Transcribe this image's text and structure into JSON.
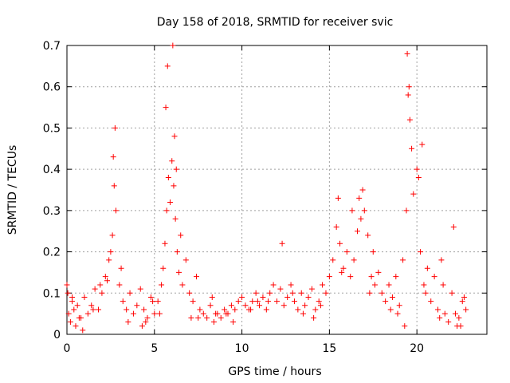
{
  "chart_data": {
    "type": "scatter",
    "title": "Day 158 of 2018, SRMTID for receiver svic",
    "xlabel": "GPS time / hours",
    "ylabel": "SRMTID / TECUs",
    "xlim": [
      0,
      24
    ],
    "ylim": [
      0,
      0.7
    ],
    "xticks": [
      0,
      5,
      10,
      15,
      20
    ],
    "xtick_labels": [
      "0",
      "5",
      "10",
      "15",
      "20"
    ],
    "yticks": [
      0,
      0.1,
      0.2,
      0.3,
      0.4,
      0.5,
      0.6,
      0.7
    ],
    "ytick_labels": [
      "0",
      "0.1",
      "0.2",
      "0.3",
      "0.4",
      "0.5",
      "0.6",
      "0.7"
    ],
    "grid": true,
    "marker": "+",
    "marker_color": "#ff0000",
    "series": [
      {
        "name": "SRMTID",
        "x": [
          0.0,
          0.1,
          0.2,
          0.3,
          0.4,
          0.5,
          0.6,
          0.8,
          1.0,
          1.2,
          1.4,
          1.6,
          1.8,
          2.0,
          2.2,
          2.4,
          2.5,
          2.6,
          2.7,
          2.8,
          3.0,
          3.2,
          3.4,
          3.6,
          3.8,
          4.0,
          4.2,
          4.4,
          4.6,
          4.8,
          5.0,
          5.2,
          5.4,
          5.5,
          5.6,
          5.7,
          5.8,
          5.9,
          6.0,
          6.1,
          6.2,
          6.3,
          6.4,
          6.6,
          6.8,
          7.0,
          7.2,
          7.4,
          7.6,
          7.8,
          8.0,
          8.2,
          8.4,
          8.6,
          8.8,
          9.0,
          9.2,
          9.4,
          9.6,
          9.8,
          10.0,
          10.2,
          10.4,
          10.6,
          10.8,
          11.0,
          11.2,
          11.4,
          11.6,
          11.8,
          12.0,
          12.2,
          12.4,
          12.6,
          12.8,
          13.0,
          13.2,
          13.4,
          13.6,
          13.8,
          14.0,
          14.2,
          14.4,
          14.6,
          14.8,
          15.0,
          15.2,
          15.4,
          15.6,
          15.8,
          16.0,
          16.2,
          16.4,
          16.6,
          16.8,
          17.0,
          17.2,
          17.4,
          17.6,
          17.8,
          18.0,
          18.2,
          18.4,
          18.6,
          18.8,
          19.0,
          19.2,
          19.4,
          19.5,
          19.6,
          19.8,
          20.0,
          20.2,
          20.4,
          20.6,
          20.8,
          21.0,
          21.2,
          21.4,
          21.6,
          21.8,
          22.0,
          22.2,
          22.4,
          22.6,
          22.8,
          0.05,
          0.3,
          0.7,
          1.5,
          2.3,
          2.65,
          2.75,
          3.1,
          4.5,
          5.3,
          5.65,
          5.75,
          6.05,
          6.15,
          6.25,
          6.5,
          7.5,
          8.5,
          9.5,
          10.5,
          11.5,
          12.3,
          13.5,
          14.5,
          15.5,
          16.3,
          16.7,
          17.3,
          18.5,
          19.45,
          19.55,
          19.7,
          20.1,
          20.3,
          21.5,
          22.1,
          22.5,
          22.7,
          0.9,
          1.9,
          3.5,
          4.3,
          4.9,
          7.1,
          8.3,
          9.1,
          10.9,
          12.9,
          14.1,
          15.7,
          16.9,
          17.5,
          18.9,
          19.3,
          20.5,
          21.3,
          22.3
        ],
        "y": [
          0.12,
          0.05,
          0.03,
          0.08,
          0.06,
          0.02,
          0.07,
          0.04,
          0.09,
          0.05,
          0.07,
          0.11,
          0.06,
          0.1,
          0.14,
          0.18,
          0.2,
          0.24,
          0.36,
          0.3,
          0.12,
          0.08,
          0.06,
          0.1,
          0.05,
          0.07,
          0.11,
          0.06,
          0.04,
          0.09,
          0.05,
          0.08,
          0.12,
          0.16,
          0.22,
          0.3,
          0.38,
          0.32,
          0.42,
          0.36,
          0.28,
          0.2,
          0.15,
          0.12,
          0.18,
          0.1,
          0.08,
          0.14,
          0.06,
          0.05,
          0.04,
          0.07,
          0.03,
          0.05,
          0.04,
          0.06,
          0.05,
          0.07,
          0.06,
          0.08,
          0.09,
          0.07,
          0.06,
          0.08,
          0.1,
          0.07,
          0.09,
          0.06,
          0.1,
          0.12,
          0.08,
          0.11,
          0.07,
          0.09,
          0.12,
          0.08,
          0.06,
          0.1,
          0.07,
          0.09,
          0.11,
          0.06,
          0.08,
          0.12,
          0.1,
          0.14,
          0.18,
          0.26,
          0.22,
          0.16,
          0.2,
          0.14,
          0.18,
          0.25,
          0.28,
          0.3,
          0.24,
          0.14,
          0.12,
          0.15,
          0.1,
          0.08,
          0.12,
          0.09,
          0.14,
          0.07,
          0.18,
          0.3,
          0.58,
          0.52,
          0.34,
          0.4,
          0.2,
          0.12,
          0.16,
          0.08,
          0.14,
          0.06,
          0.18,
          0.05,
          0.03,
          0.1,
          0.05,
          0.04,
          0.08,
          0.06,
          0.1,
          0.09,
          0.04,
          0.06,
          0.13,
          0.43,
          0.5,
          0.16,
          0.03,
          0.05,
          0.55,
          0.65,
          0.7,
          0.48,
          0.4,
          0.24,
          0.04,
          0.05,
          0.03,
          0.06,
          0.08,
          0.22,
          0.05,
          0.07,
          0.33,
          0.3,
          0.33,
          0.1,
          0.06,
          0.68,
          0.6,
          0.45,
          0.38,
          0.46,
          0.12,
          0.26,
          0.02,
          0.09,
          0.01,
          0.12,
          0.03,
          0.02,
          0.08,
          0.04,
          0.09,
          0.05,
          0.08,
          0.1,
          0.04,
          0.15,
          0.35,
          0.2,
          0.05,
          0.02,
          0.1,
          0.04,
          0.02
        ]
      }
    ]
  }
}
